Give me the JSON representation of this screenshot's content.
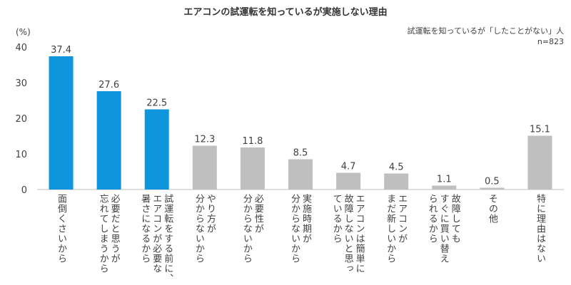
{
  "chart_data": {
    "type": "bar",
    "title": "エアコンの試運転を知っているが実施しない理由",
    "subtitle": [
      "試運転を知っているが「したことがない」人",
      "n=823"
    ],
    "ylabel": "(%)",
    "ylim": [
      0,
      40
    ],
    "yticks": [
      0,
      10,
      20,
      30,
      40
    ],
    "grid": false,
    "categories": [
      [
        "面倒くさいから"
      ],
      [
        "必要だと思うが",
        "忘れてしまうから"
      ],
      [
        "試運転をする前に、",
        "エアコンが必要な",
        "暑さになるから"
      ],
      [
        "やり方が",
        "分からないから"
      ],
      [
        "必要性が",
        "分からないから"
      ],
      [
        "実施時期が",
        "分からないから"
      ],
      [
        "エアコンは簡単に",
        "故障しないと思っ",
        "ているから"
      ],
      [
        "エアコンが",
        "まだ新しいから"
      ],
      [
        "故障しても",
        "すぐに買い替え",
        "られるから"
      ],
      [
        "その他"
      ],
      [
        "特に理由はない"
      ]
    ],
    "values": [
      37.4,
      27.6,
      22.5,
      12.3,
      11.8,
      8.5,
      4.7,
      4.5,
      1.1,
      0.5,
      15.1
    ],
    "value_labels": [
      "37.4",
      "27.6",
      "22.5",
      "12.3",
      "11.8",
      "8.5",
      "4.7",
      "4.5",
      "1.1",
      "0.5",
      "15.1"
    ],
    "highlight_count": 3,
    "colors": {
      "highlight": "#0e95dc",
      "other": "#bfbfbf",
      "axis": "#bfbfbf"
    }
  }
}
